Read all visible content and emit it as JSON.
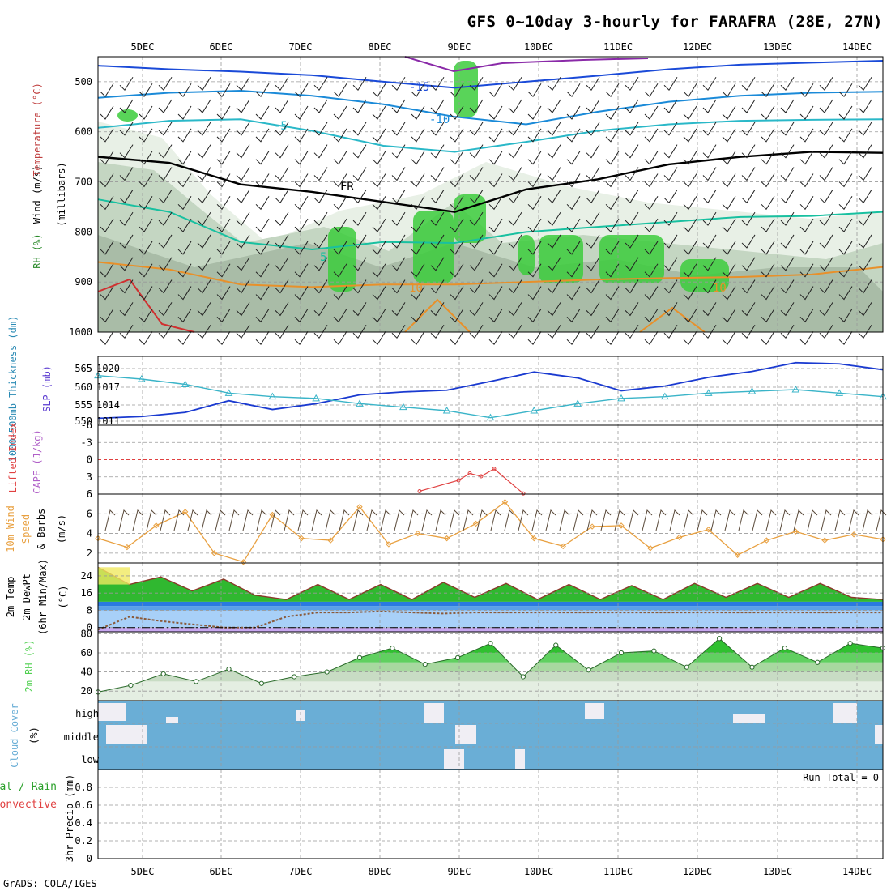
{
  "title": "GFS 0~10day 3-hourly for FARAFRA (28E, 27N)",
  "footer": "GrADS: COLA/IGES",
  "run_total_text": "Run Total = 0",
  "colors": {
    "rh_green": "#3ccc3c",
    "temp_orange": "#e8902a",
    "slp_blue": "#1a3ad0",
    "thickness_cyan": "#3ab4c8",
    "cape_red": "#e04040",
    "wind_orange": "#e8a040",
    "cloud_blue": "#6aaed6",
    "rh2m_green": "#50d050",
    "dewpt_brown": "#8a5a3a"
  },
  "chart_data": [
    {
      "id": "upper-air",
      "type": "heatmap",
      "title": "GFS 0~10day 3-hourly for FARAFRA (28E, 27N)",
      "x_ticks": [
        "5DEC",
        "6DEC",
        "7DEC",
        "8DEC",
        "9DEC",
        "10DEC",
        "11DEC",
        "12DEC",
        "13DEC",
        "14DEC"
      ],
      "ylabel_parts": [
        "RH (%)",
        "Temperature (°C)",
        "Wind (m/s)"
      ],
      "ylabel_units": "(millibars)",
      "y_ticks": [
        500,
        600,
        700,
        800,
        900,
        1000
      ],
      "ylim": [
        450,
        1000
      ],
      "contour_labels": [
        "-15",
        "-10",
        "-5",
        "FR",
        "5",
        "10",
        "10"
      ],
      "isotherms": [
        {
          "label": "-15",
          "color": "#1a4ad8",
          "p": [
            468,
            475,
            480,
            487,
            500,
            512,
            500,
            488,
            475,
            466,
            462,
            458
          ]
        },
        {
          "label": "-10",
          "color": "#1a8ad8",
          "p": [
            532,
            522,
            518,
            528,
            545,
            570,
            585,
            560,
            540,
            528,
            522,
            520
          ]
        },
        {
          "label": "-5",
          "color": "#2ab8c8",
          "p": [
            592,
            578,
            575,
            598,
            628,
            640,
            620,
            598,
            585,
            578,
            576,
            575
          ]
        },
        {
          "label": "FR",
          "color": "#000000",
          "p": [
            650,
            662,
            705,
            720,
            740,
            760,
            715,
            695,
            665,
            650,
            640,
            642
          ]
        },
        {
          "label": "5",
          "color": "#18c0a0",
          "p": [
            735,
            760,
            820,
            835,
            820,
            822,
            800,
            790,
            780,
            770,
            768,
            760
          ]
        },
        {
          "label": "10",
          "color": "#e8902a",
          "p": [
            860,
            875,
            905,
            910,
            905,
            905,
            900,
            895,
            892,
            890,
            885,
            870
          ]
        }
      ]
    },
    {
      "id": "slp-thickness",
      "type": "line",
      "ylabel": "1000-500mb Thickness (dm)",
      "ylabel_right": "SLP (mb)",
      "left_ticks": [
        "565",
        "560",
        "555",
        "550"
      ],
      "right_ticks": [
        "1020",
        "1017",
        "1014",
        "1011"
      ],
      "series": [
        {
          "name": "SLP",
          "color": "#1a3ad0",
          "values": [
            1011.5,
            1011.8,
            1012.5,
            1014.5,
            1013,
            1014,
            1015.5,
            1016,
            1016.3,
            1017.8,
            1019.4,
            1018.4,
            1016.2,
            1017,
            1018.5,
            1019.5,
            1021,
            1020.8,
            1019.8
          ]
        },
        {
          "name": "Thickness",
          "color": "#3ab4c8",
          "values": [
            563,
            562,
            560.5,
            558,
            557,
            556.5,
            555,
            554,
            553,
            551,
            553,
            555,
            556.5,
            557,
            558,
            558.5,
            559,
            558,
            557
          ]
        }
      ]
    },
    {
      "id": "cape-li",
      "type": "line",
      "ylabel": "Lifted Index",
      "ylabel2": "CAPE (J/kg)",
      "y_ticks": [
        "-6",
        "-3",
        "0",
        "3",
        "6"
      ],
      "ylim": [
        -6,
        6
      ],
      "series": [
        {
          "name": "CAPE",
          "color": "#e04040",
          "values": [
            5.5,
            3.6,
            2.4,
            2.9,
            1.6,
            5.9
          ]
        }
      ]
    },
    {
      "id": "wind-10m",
      "type": "line",
      "ylabel": "10m Wind Speed & Barbs (m/s)",
      "ylabel_parts": [
        "10m Wind",
        "Speed",
        "& Barbs"
      ],
      "y_ticks": [
        "2",
        "4",
        "6"
      ],
      "ylim": [
        1,
        8
      ],
      "series": [
        {
          "name": "Speed",
          "color": "#e8a040",
          "values": [
            3.5,
            2.6,
            4.8,
            6.2,
            2.0,
            1.1,
            5.9,
            3.5,
            3.3,
            6.7,
            2.9,
            4.0,
            3.5,
            5.0,
            7.2,
            3.5,
            2.7,
            4.7,
            4.8,
            2.5,
            3.6,
            4.4,
            1.8,
            3.3,
            4.2,
            3.3,
            3.9,
            3.4
          ]
        }
      ]
    },
    {
      "id": "temp-2m",
      "type": "area",
      "ylabel_parts": [
        "2m Temp",
        "2m DewPt",
        "(6hr Min/Max)"
      ],
      "ylabel": "(°C)",
      "y_ticks": [
        "0",
        "8",
        "16",
        "24"
      ],
      "ylim": [
        -2,
        30
      ],
      "series": [
        {
          "name": "2m Temp",
          "color": "#2aa02a",
          "values": [
            28,
            20,
            23.5,
            17,
            22.5,
            15,
            13,
            20,
            13,
            20,
            13,
            21,
            14,
            20.5,
            13,
            20,
            13,
            19.5,
            13,
            20.5,
            14,
            20.5,
            14,
            20.5,
            14,
            13
          ]
        },
        {
          "name": "2m DewPt",
          "color": "#8a5a3a",
          "values": [
            -1,
            5,
            3,
            1.5,
            0,
            0,
            5,
            7,
            7,
            7.5,
            7,
            6.5,
            7,
            7,
            7,
            7,
            7,
            7,
            7,
            7,
            7,
            7,
            7,
            7,
            7,
            7
          ]
        }
      ]
    },
    {
      "id": "rh-2m",
      "type": "area",
      "ylabel": "2m RH (%)",
      "y_ticks": [
        "20",
        "40",
        "60",
        "80"
      ],
      "ylim": [
        10,
        82
      ],
      "series": [
        {
          "name": "2m RH",
          "color": "#40c040",
          "values": [
            19,
            26,
            38,
            30,
            43,
            28,
            35,
            40,
            55,
            65,
            48,
            55,
            70,
            35,
            68,
            42,
            60,
            62,
            45,
            75,
            45,
            65,
            50,
            70,
            65
          ]
        }
      ]
    },
    {
      "id": "cloud-cover",
      "type": "heatmap",
      "ylabel": "Cloud Cover (%)",
      "levels": [
        "high",
        "middle",
        "low"
      ],
      "color": "#6aaed6"
    },
    {
      "id": "precip",
      "type": "bar",
      "ylabel_parts": [
        "Total / Rain",
        "Convective"
      ],
      "ylabel": "3hr Precip (mm)",
      "y_ticks": [
        "0",
        "0.2",
        "0.4",
        "0.6",
        "0.8"
      ],
      "ylim": [
        0,
        1
      ],
      "values": []
    }
  ]
}
